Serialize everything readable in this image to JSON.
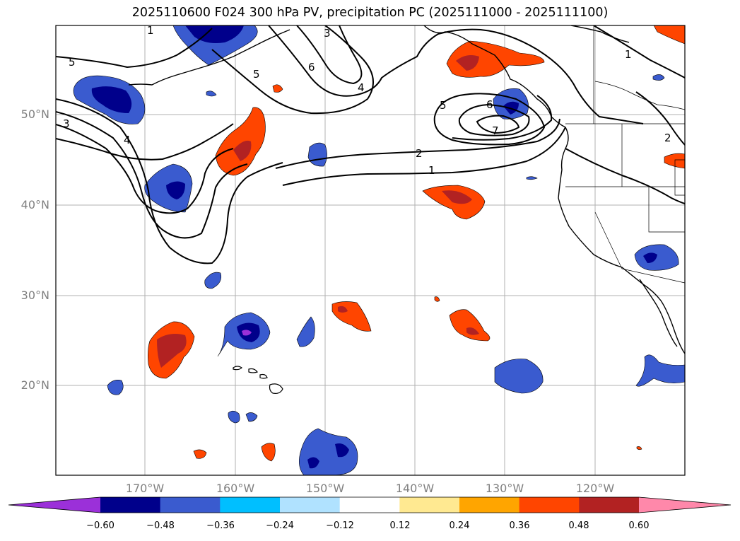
{
  "title": "2025110600 F024 300 hPa PV, precipitation PC (2025111000 - 2025111100)",
  "lat_labels": [
    "50°N",
    "40°N",
    "30°N",
    "20°N"
  ],
  "lon_labels": [
    "170°W",
    "160°W",
    "150°W",
    "140°W",
    "130°W",
    "120°W"
  ],
  "colorbar": {
    "ticks": [
      "−0.60",
      "−0.48",
      "−0.36",
      "−0.24",
      "−0.12",
      "0.12",
      "0.24",
      "0.36",
      "0.48",
      "0.60"
    ],
    "colors": [
      "#9b30d9",
      "#00008b",
      "#3a5bcf",
      "#00bfff",
      "#b0e2ff",
      "#ffffff",
      "#ffe991",
      "#ffa500",
      "#ff4500",
      "#b22222",
      "#ff88aa"
    ]
  },
  "pv_contour_labels": [
    "1",
    "2",
    "3",
    "4",
    "5",
    "6",
    "7"
  ],
  "colors": {
    "neg_strong": "#00008b",
    "neg_mid": "#3a5bcf",
    "neg_light": "#00bfff",
    "neg_lightest": "#b0e2ff",
    "neg_extreme": "#9b30d9",
    "pos_light": "#ffe991",
    "pos_mid": "#ffa500",
    "pos_strong": "#ff4500",
    "pos_darker": "#b22222"
  }
}
